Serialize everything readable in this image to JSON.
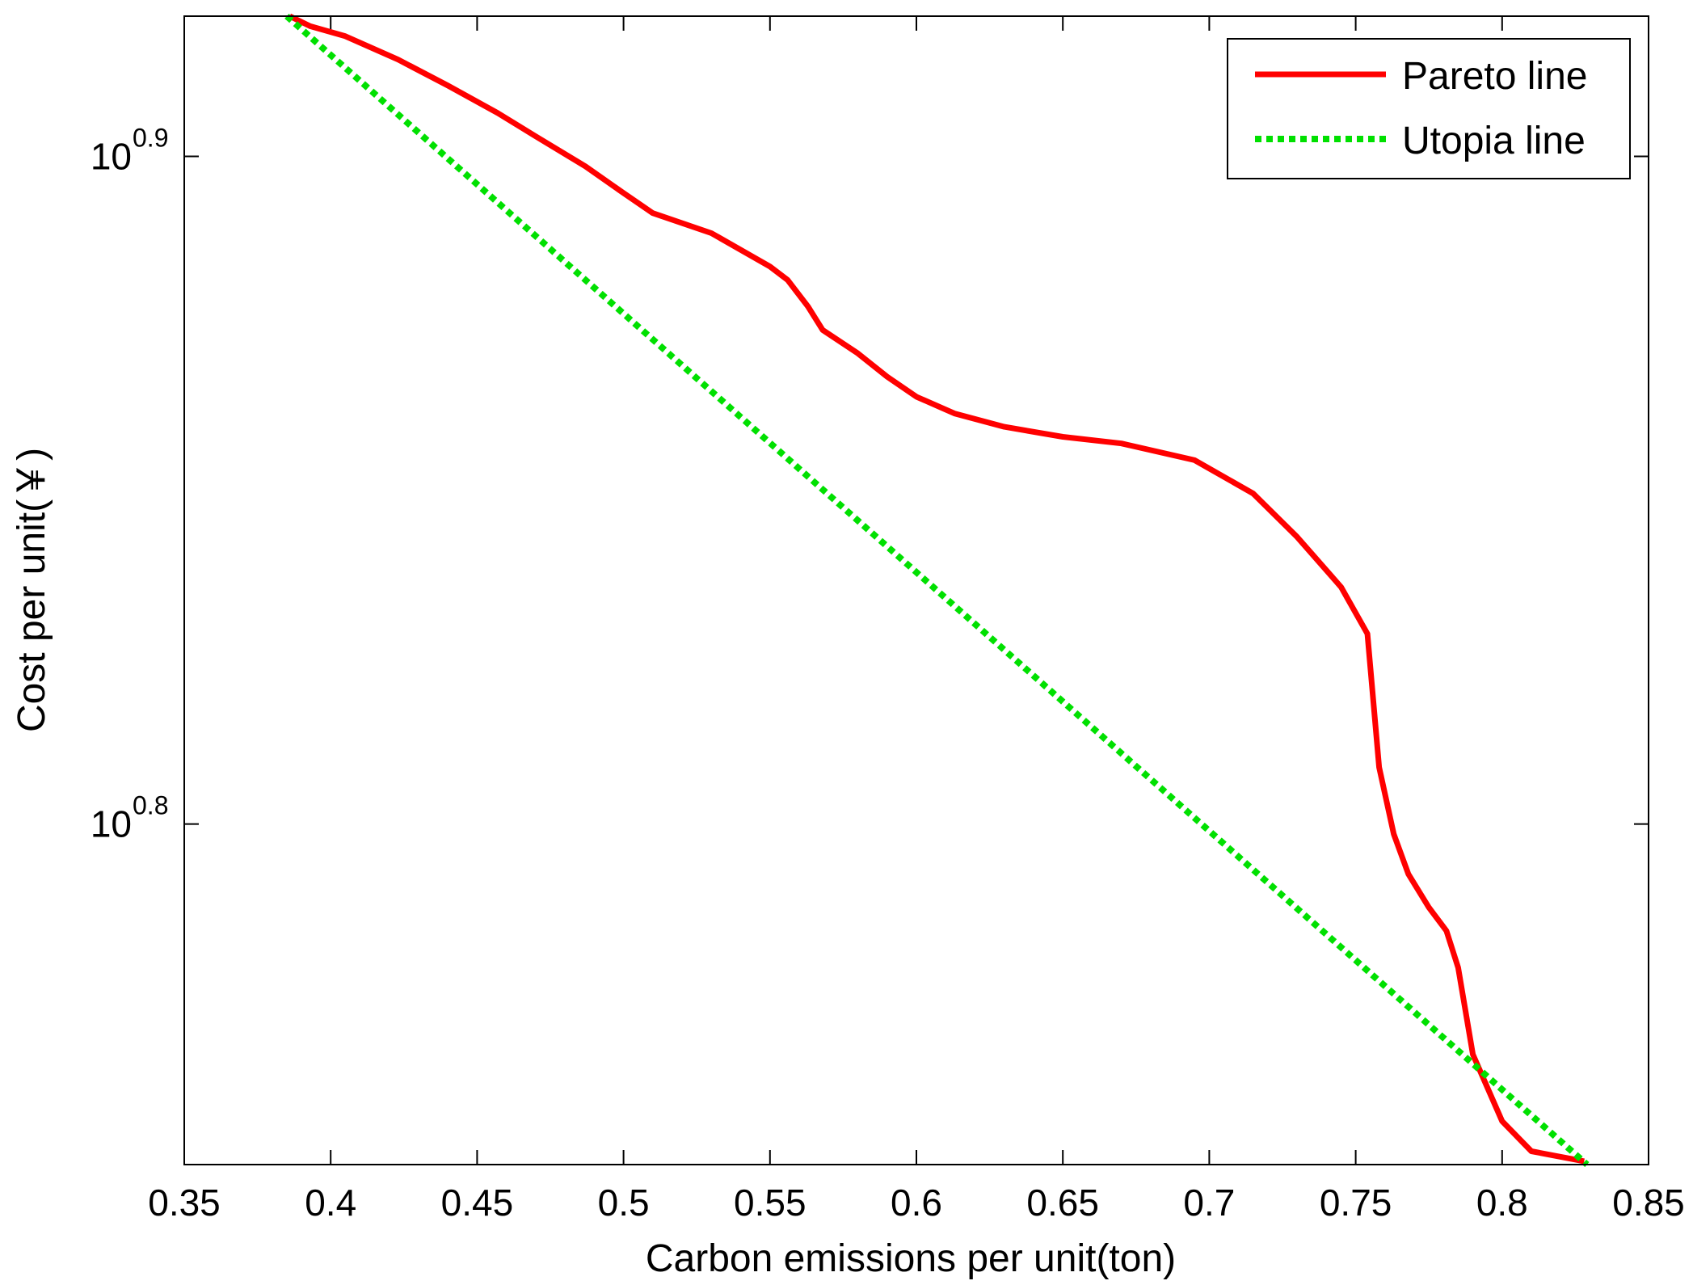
{
  "chart_data": {
    "type": "line",
    "title": "",
    "xlabel": "Carbon emissions per unit(ton)",
    "ylabel": "Cost per unit(￥)",
    "xlim": [
      0.35,
      0.85
    ],
    "ylim_log10": [
      0.749,
      0.921
    ],
    "y_scale": "log",
    "grid": false,
    "legend_position": "top-right",
    "x_ticks": [
      0.35,
      0.4,
      0.45,
      0.5,
      0.55,
      0.6,
      0.65,
      0.7,
      0.75,
      0.8,
      0.85
    ],
    "x_tick_labels": [
      "0.35",
      "0.4",
      "0.45",
      "0.5",
      "0.55",
      "0.6",
      "0.65",
      "0.7",
      "0.75",
      "0.8",
      "0.85"
    ],
    "y_ticks": [
      {
        "exponent": 0.9,
        "base": "10",
        "exp_label": "0.9"
      },
      {
        "exponent": 0.8,
        "base": "10",
        "exp_label": "0.8"
      }
    ],
    "series": [
      {
        "name": "Pareto line",
        "color": "#ff0000",
        "style": "solid",
        "x": [
          0.386,
          0.393,
          0.405,
          0.423,
          0.44,
          0.457,
          0.47,
          0.487,
          0.5,
          0.51,
          0.53,
          0.55,
          0.556,
          0.563,
          0.568,
          0.58,
          0.59,
          0.6,
          0.613,
          0.63,
          0.65,
          0.67,
          0.695,
          0.715,
          0.73,
          0.745,
          0.754,
          0.758,
          0.763,
          0.768,
          0.775,
          0.781,
          0.785,
          0.79,
          0.8,
          0.81,
          0.828
        ],
        "y_log10": [
          0.921,
          0.9195,
          0.918,
          0.9145,
          0.9106,
          0.9065,
          0.903,
          0.8985,
          0.8945,
          0.8915,
          0.8885,
          0.8835,
          0.8815,
          0.8775,
          0.874,
          0.8705,
          0.867,
          0.864,
          0.8615,
          0.8595,
          0.858,
          0.857,
          0.8545,
          0.8495,
          0.843,
          0.8355,
          0.8285,
          0.8085,
          0.7985,
          0.7925,
          0.7875,
          0.784,
          0.7785,
          0.7655,
          0.7555,
          0.751,
          0.7495
        ]
      },
      {
        "name": "Utopia line",
        "color": "#00e000",
        "style": "dotted",
        "x": [
          0.385,
          0.829
        ],
        "y_log10": [
          0.921,
          0.749
        ]
      }
    ]
  }
}
